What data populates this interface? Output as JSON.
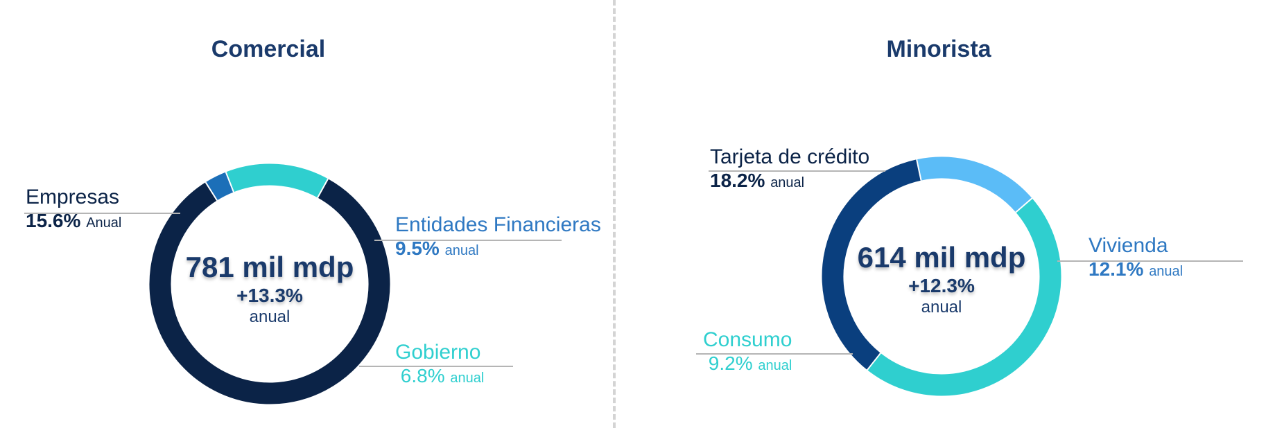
{
  "chart_data": [
    {
      "type": "pie",
      "title": "Comercial",
      "center": {
        "total": "781 mil mdp",
        "growth": "+13.3%",
        "note": "anual"
      },
      "slices": [
        {
          "name": "Empresas",
          "value": 0.83,
          "growth": "15.6%",
          "unit": "Anual",
          "color": "#0b2347"
        },
        {
          "name": "Entidades Financieras",
          "value": 0.03,
          "growth": "9.5%",
          "unit": "anual",
          "color": "#1c6fb8"
        },
        {
          "name": "Gobierno",
          "value": 0.14,
          "growth": "6.8%",
          "unit": "anual",
          "color": "#2fcfcf"
        }
      ]
    },
    {
      "type": "pie",
      "title": "Minorista",
      "center": {
        "total": "614 mil mdp",
        "growth": "+12.3%",
        "note": "anual"
      },
      "slices": [
        {
          "name": "Tarjeta de crédito",
          "value": 0.17,
          "growth": "18.2%",
          "unit": "anual",
          "color": "#5bbcf7"
        },
        {
          "name": "Vivienda",
          "value": 0.47,
          "growth": "12.1%",
          "unit": "anual",
          "color": "#2fcfcf"
        },
        {
          "name": "Consumo",
          "value": 0.36,
          "growth": "9.2%",
          "unit": "anual",
          "color": "#0a3f7e"
        }
      ]
    }
  ]
}
